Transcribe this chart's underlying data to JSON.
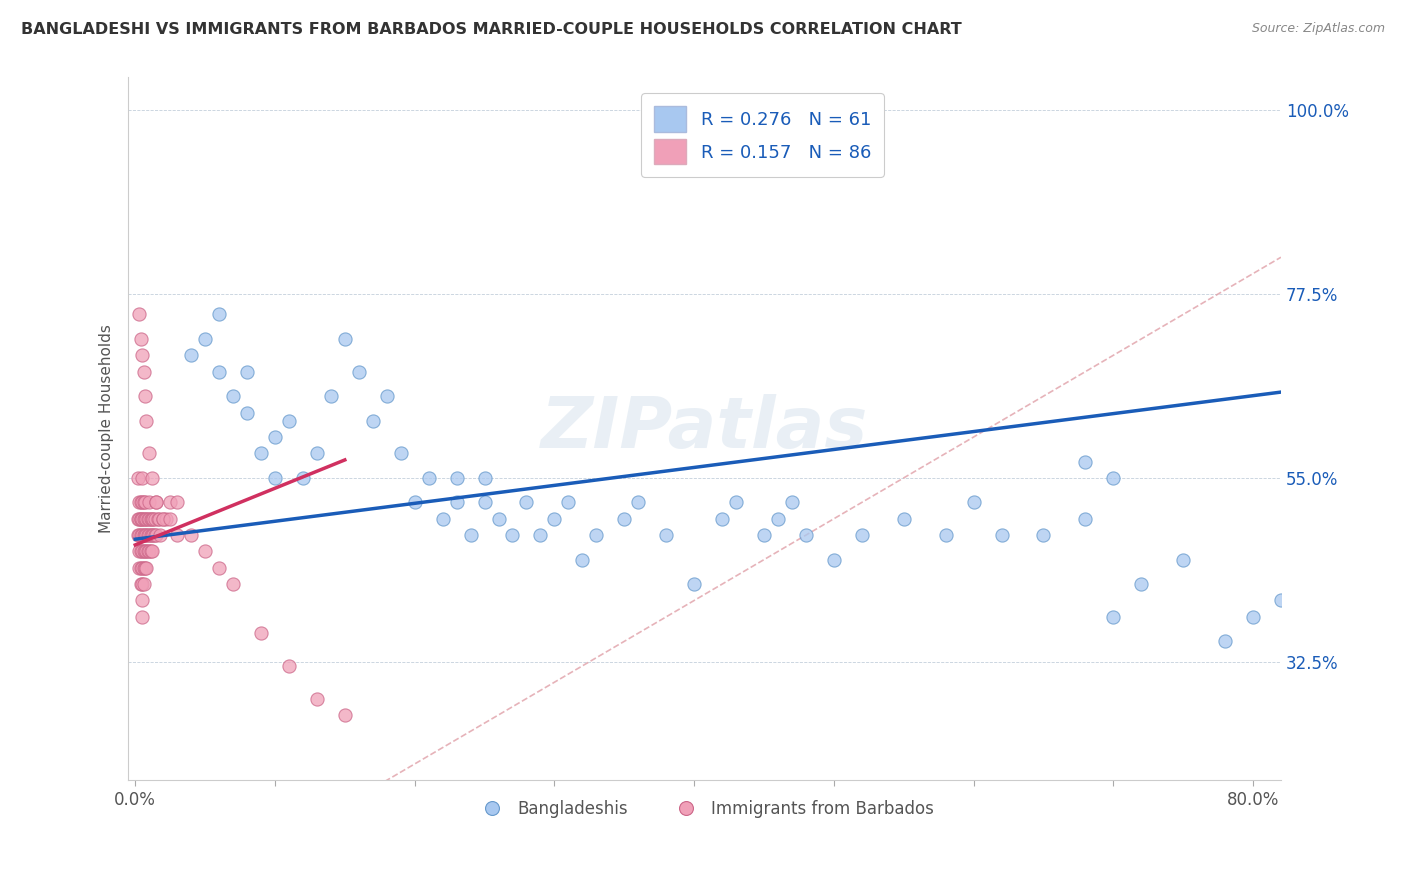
{
  "title": "BANGLADESHI VS IMMIGRANTS FROM BARBADOS MARRIED-COUPLE HOUSEHOLDS CORRELATION CHART",
  "source": "Source: ZipAtlas.com",
  "ylabel": "Married-couple Households",
  "xlim": [
    -0.005,
    0.82
  ],
  "ylim": [
    0.18,
    1.04
  ],
  "xticks": [
    0.0,
    0.1,
    0.2,
    0.3,
    0.4,
    0.5,
    0.6,
    0.7,
    0.8
  ],
  "xticklabels": [
    "0.0%",
    "",
    "",
    "",
    "",
    "",
    "",
    "",
    "80.0%"
  ],
  "yticks": [
    0.325,
    0.55,
    0.775,
    1.0
  ],
  "yticklabels": [
    "32.5%",
    "55.0%",
    "77.5%",
    "100.0%"
  ],
  "legend_labels": [
    "Bangladeshis",
    "Immigrants from Barbados"
  ],
  "legend_r1": "R = 0.276",
  "legend_n1": "N = 61",
  "legend_r2": "R = 0.157",
  "legend_n2": "N = 86",
  "color_blue": "#A8C8F0",
  "color_pink": "#F0A0B8",
  "trend_blue": "#1A5CB8",
  "trend_pink": "#D03060",
  "ref_line_color": "#E0A0A8",
  "watermark": "ZIPatlas",
  "blue_scatter_x": [
    0.04,
    0.05,
    0.06,
    0.06,
    0.07,
    0.08,
    0.08,
    0.09,
    0.1,
    0.1,
    0.11,
    0.12,
    0.13,
    0.14,
    0.15,
    0.16,
    0.17,
    0.18,
    0.19,
    0.2,
    0.21,
    0.22,
    0.23,
    0.23,
    0.24,
    0.25,
    0.25,
    0.26,
    0.27,
    0.28,
    0.29,
    0.3,
    0.31,
    0.32,
    0.33,
    0.35,
    0.36,
    0.38,
    0.4,
    0.42,
    0.43,
    0.45,
    0.46,
    0.47,
    0.48,
    0.5,
    0.52,
    0.55,
    0.58,
    0.6,
    0.62,
    0.65,
    0.68,
    0.7,
    0.72,
    0.75,
    0.78,
    0.8,
    0.82,
    0.68,
    0.7
  ],
  "blue_scatter_y": [
    0.7,
    0.72,
    0.68,
    0.75,
    0.65,
    0.63,
    0.68,
    0.58,
    0.6,
    0.55,
    0.62,
    0.55,
    0.58,
    0.65,
    0.72,
    0.68,
    0.62,
    0.65,
    0.58,
    0.52,
    0.55,
    0.5,
    0.52,
    0.55,
    0.48,
    0.52,
    0.55,
    0.5,
    0.48,
    0.52,
    0.48,
    0.5,
    0.52,
    0.45,
    0.48,
    0.5,
    0.52,
    0.48,
    0.42,
    0.5,
    0.52,
    0.48,
    0.5,
    0.52,
    0.48,
    0.45,
    0.48,
    0.5,
    0.48,
    0.52,
    0.48,
    0.48,
    0.5,
    0.38,
    0.42,
    0.45,
    0.35,
    0.38,
    0.4,
    0.57,
    0.55
  ],
  "pink_scatter_x": [
    0.002,
    0.002,
    0.002,
    0.003,
    0.003,
    0.003,
    0.003,
    0.003,
    0.004,
    0.004,
    0.004,
    0.004,
    0.004,
    0.004,
    0.004,
    0.005,
    0.005,
    0.005,
    0.005,
    0.005,
    0.005,
    0.005,
    0.005,
    0.005,
    0.006,
    0.006,
    0.006,
    0.006,
    0.006,
    0.006,
    0.007,
    0.007,
    0.007,
    0.007,
    0.007,
    0.008,
    0.008,
    0.008,
    0.008,
    0.009,
    0.009,
    0.009,
    0.01,
    0.01,
    0.01,
    0.01,
    0.011,
    0.011,
    0.011,
    0.012,
    0.012,
    0.012,
    0.013,
    0.013,
    0.014,
    0.014,
    0.015,
    0.015,
    0.016,
    0.017,
    0.018,
    0.02,
    0.022,
    0.025,
    0.03,
    0.003,
    0.004,
    0.005,
    0.006,
    0.007,
    0.008,
    0.01,
    0.012,
    0.015,
    0.02,
    0.025,
    0.03,
    0.04,
    0.05,
    0.06,
    0.07,
    0.09,
    0.11,
    0.13,
    0.15
  ],
  "pink_scatter_y": [
    0.55,
    0.5,
    0.48,
    0.52,
    0.48,
    0.46,
    0.5,
    0.44,
    0.52,
    0.5,
    0.48,
    0.46,
    0.44,
    0.42,
    0.5,
    0.55,
    0.52,
    0.5,
    0.48,
    0.46,
    0.44,
    0.42,
    0.4,
    0.38,
    0.52,
    0.5,
    0.48,
    0.46,
    0.44,
    0.42,
    0.52,
    0.5,
    0.48,
    0.46,
    0.44,
    0.5,
    0.48,
    0.46,
    0.44,
    0.5,
    0.48,
    0.46,
    0.52,
    0.5,
    0.48,
    0.46,
    0.5,
    0.48,
    0.46,
    0.5,
    0.48,
    0.46,
    0.5,
    0.48,
    0.5,
    0.48,
    0.52,
    0.48,
    0.5,
    0.5,
    0.48,
    0.5,
    0.5,
    0.52,
    0.52,
    0.75,
    0.72,
    0.7,
    0.68,
    0.65,
    0.62,
    0.58,
    0.55,
    0.52,
    0.5,
    0.5,
    0.48,
    0.48,
    0.46,
    0.44,
    0.42,
    0.36,
    0.32,
    0.28,
    0.26
  ],
  "blue_trend_x": [
    0.0,
    0.82
  ],
  "blue_trend_y": [
    0.475,
    0.655
  ],
  "pink_trend_x": [
    0.0,
    0.15
  ],
  "pink_trend_y": [
    0.468,
    0.572
  ],
  "ref_line_x": [
    0.0,
    0.82
  ],
  "ref_line_y": [
    0.0,
    0.82
  ]
}
